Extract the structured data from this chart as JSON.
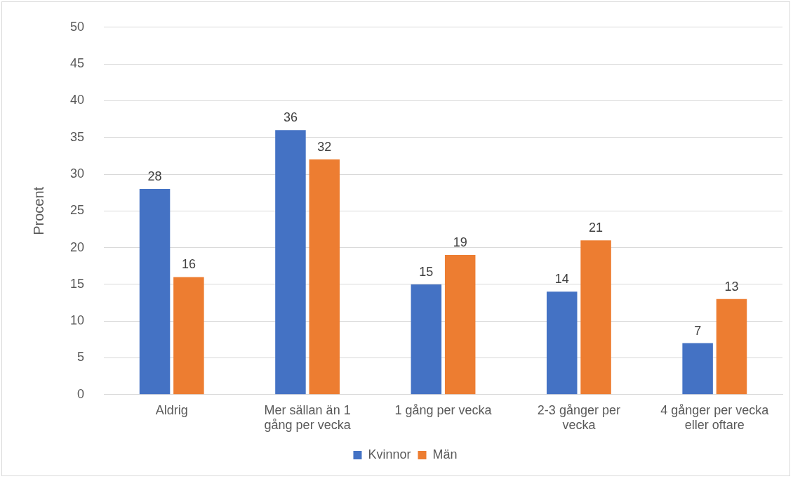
{
  "chart_data": {
    "type": "bar",
    "ylabel": "Procent",
    "categories": [
      "Aldrig",
      "Mer sällan än 1 gång per vecka",
      "1 gång per vecka",
      "2-3 gånger per vecka",
      "4 gånger per vecka eller oftare"
    ],
    "series": [
      {
        "name": "Kvinnor",
        "color": "#4472c4",
        "values": [
          28,
          36,
          15,
          14,
          7
        ]
      },
      {
        "name": "Män",
        "color": "#ed7d31",
        "values": [
          16,
          32,
          19,
          21,
          13
        ]
      }
    ],
    "ylim": [
      0,
      50
    ],
    "yticks": [
      0,
      5,
      10,
      15,
      20,
      25,
      30,
      35,
      40,
      45,
      50
    ],
    "grid": "y",
    "legend": "bottom",
    "data_labels": true
  }
}
